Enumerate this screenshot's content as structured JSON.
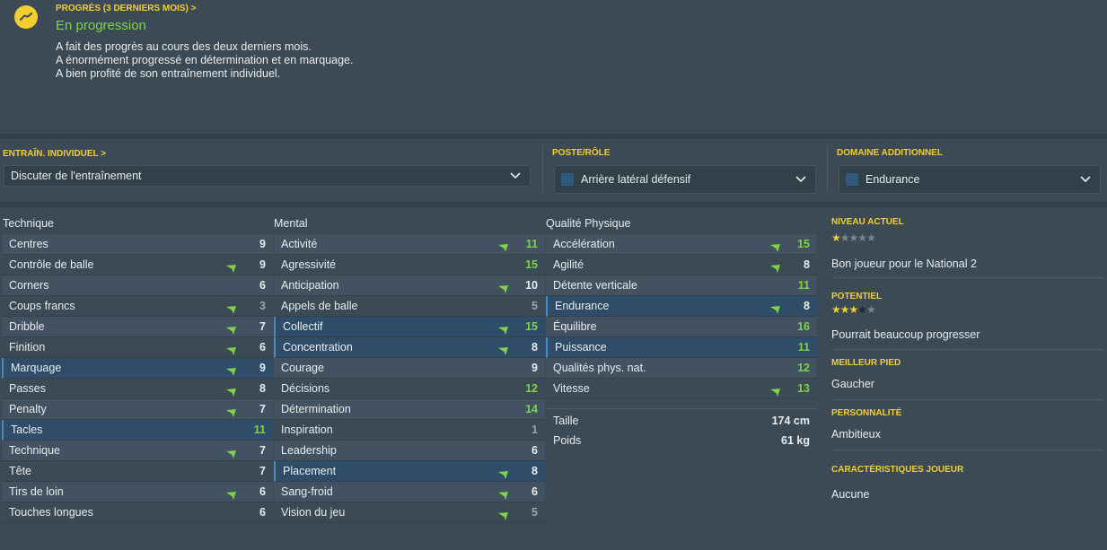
{
  "progress": {
    "header": "PROGRÈS (3 DERNIERS MOIS) >",
    "status": "En progression",
    "lines": [
      "A fait des progrès au cours des deux derniers mois.",
      "A énormément progressé en détermination et en marquage.",
      "A bien profité de son entraînement individuel."
    ],
    "icon": "trend-line-icon"
  },
  "training": {
    "label": "ENTRAÎN. INDIVIDUEL >",
    "value": "Discuter de l'entraînement"
  },
  "role": {
    "label": "POSTE/RÔLE",
    "value": "Arrière latéral défensif"
  },
  "extra": {
    "label": "DOMAINE ADDITIONNEL",
    "value": "Endurance"
  },
  "technique": {
    "title": "Technique",
    "items": [
      {
        "name": "Centres",
        "value": "9",
        "arrow": false,
        "color": "white"
      },
      {
        "name": "Contrôle de balle",
        "value": "9",
        "arrow": true,
        "color": "white"
      },
      {
        "name": "Corners",
        "value": "6",
        "arrow": false,
        "color": "white"
      },
      {
        "name": "Coups francs",
        "value": "3",
        "arrow": true,
        "color": "grey"
      },
      {
        "name": "Dribble",
        "value": "7",
        "arrow": true,
        "color": "white"
      },
      {
        "name": "Finition",
        "value": "6",
        "arrow": true,
        "color": "white"
      },
      {
        "name": "Marquage",
        "value": "9",
        "arrow": true,
        "color": "white"
      },
      {
        "name": "Passes",
        "value": "8",
        "arrow": true,
        "color": "white"
      },
      {
        "name": "Penalty",
        "value": "7",
        "arrow": true,
        "color": "white"
      },
      {
        "name": "Tacles",
        "value": "11",
        "arrow": false,
        "color": "green"
      },
      {
        "name": "Technique",
        "value": "7",
        "arrow": true,
        "color": "white"
      },
      {
        "name": "Tête",
        "value": "7",
        "arrow": false,
        "color": "white"
      },
      {
        "name": "Tirs de loin",
        "value": "6",
        "arrow": true,
        "color": "white"
      },
      {
        "name": "Touches longues",
        "value": "6",
        "arrow": false,
        "color": "white"
      }
    ]
  },
  "mental": {
    "title": "Mental",
    "items": [
      {
        "name": "Activité",
        "value": "11",
        "arrow": true,
        "color": "green"
      },
      {
        "name": "Agressivité",
        "value": "15",
        "arrow": false,
        "color": "green"
      },
      {
        "name": "Anticipation",
        "value": "10",
        "arrow": true,
        "color": "white"
      },
      {
        "name": "Appels de balle",
        "value": "5",
        "arrow": false,
        "color": "grey"
      },
      {
        "name": "Collectif",
        "value": "15",
        "arrow": true,
        "color": "green"
      },
      {
        "name": "Concentration",
        "value": "8",
        "arrow": true,
        "color": "white"
      },
      {
        "name": "Courage",
        "value": "9",
        "arrow": false,
        "color": "white"
      },
      {
        "name": "Décisions",
        "value": "12",
        "arrow": false,
        "color": "green"
      },
      {
        "name": "Détermination",
        "value": "14",
        "arrow": false,
        "color": "green"
      },
      {
        "name": "Inspiration",
        "value": "1",
        "arrow": false,
        "color": "grey"
      },
      {
        "name": "Leadership",
        "value": "6",
        "arrow": false,
        "color": "white"
      },
      {
        "name": "Placement",
        "value": "8",
        "arrow": true,
        "color": "white"
      },
      {
        "name": "Sang-froid",
        "value": "6",
        "arrow": true,
        "color": "white"
      },
      {
        "name": "Vision du jeu",
        "value": "5",
        "arrow": true,
        "color": "grey"
      }
    ]
  },
  "physical": {
    "title": "Qualité Physique",
    "items": [
      {
        "name": "Accélération",
        "value": "15",
        "arrow": true,
        "color": "green"
      },
      {
        "name": "Agilité",
        "value": "8",
        "arrow": true,
        "color": "white"
      },
      {
        "name": "Détente verticale",
        "value": "11",
        "arrow": false,
        "color": "green"
      },
      {
        "name": "Endurance",
        "value": "8",
        "arrow": true,
        "color": "white"
      },
      {
        "name": "Équilibre",
        "value": "16",
        "arrow": false,
        "color": "green"
      },
      {
        "name": "Puissance",
        "value": "11",
        "arrow": false,
        "color": "green"
      },
      {
        "name": "Qualités phys. nat.",
        "value": "12",
        "arrow": false,
        "color": "green"
      },
      {
        "name": "Vitesse",
        "value": "13",
        "arrow": true,
        "color": "green"
      }
    ],
    "height_label": "Taille",
    "height_value": "174 cm",
    "weight_label": "Poids",
    "weight_value": "61 kg"
  },
  "info": {
    "current_label": "NIVEAU ACTUEL",
    "current_stars": 1,
    "current_text": "Bon joueur pour le National 2",
    "potential_label": "POTENTIEL",
    "potential_stars": 3,
    "potential_text": "Pourrait beaucoup progresser",
    "foot_label": "MEILLEUR PIED",
    "foot_value": "Gaucher",
    "personality_label": "PERSONNALITÉ",
    "personality_value": "Ambitieux",
    "traits_label": "CARACTÉRISTIQUES JOUEUR",
    "traits_value": "Aucune"
  },
  "colors": {
    "background": "#3b4a55",
    "accent_yellow": "#f2cf2e",
    "attr_green": "#7fd24a",
    "highlight_blue": "#2f4d68"
  }
}
